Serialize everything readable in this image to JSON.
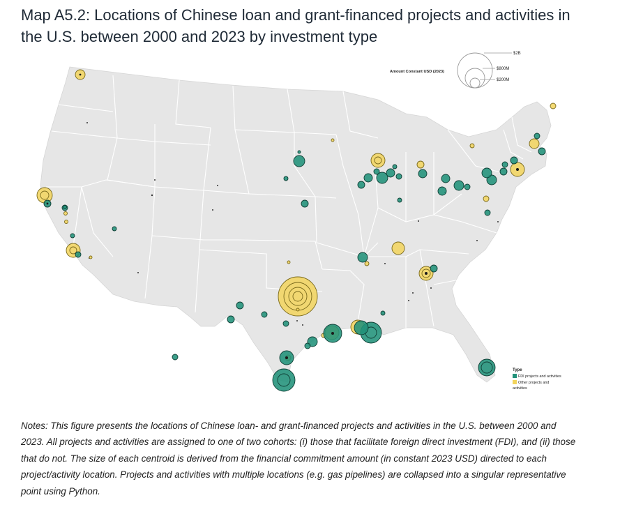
{
  "title": "Map A5.2: Locations of Chinese loan and grant-financed projects and activities in the U.S. between 2000 and 2023 by investment type",
  "size_legend": {
    "title": "Amount Constant USD (2023)",
    "labels": [
      "$2B",
      "$800M",
      "$200M"
    ]
  },
  "type_legend": {
    "title": "Type",
    "items": [
      {
        "label": "FDI projects and activities",
        "color": "#21927a"
      },
      {
        "label": "Other projects and",
        "label2": "activities",
        "color": "#f2d45c"
      }
    ]
  },
  "notes": "Notes: This figure presents the locations of Chinese loan- and grant-financed projects and activities in the U.S. between 2000 and 2023. All projects and activities are assigned to one of two cohorts: (i) those that facilitate foreign direct investment (FDI), and (ii) those that do not. The size of each centroid is derived from the financial commitment amount (in constant 2023 USD) directed to each project/activity location. Projects and activities with multiple locations (e.g. gas pipelines) are collapsed into a singular representative point using Python.",
  "colors": {
    "fdi": "#21927a",
    "other": "#f2d45c",
    "land": "#e6e6e6",
    "border": "#ffffff"
  }
}
